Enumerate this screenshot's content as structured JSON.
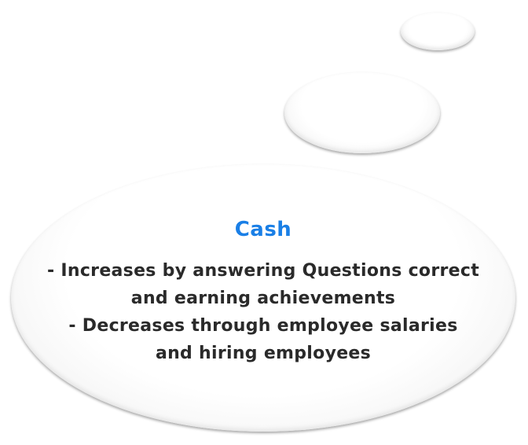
{
  "tooltip": {
    "title": "Cash",
    "lines": [
      "- Increases by answering Questions correct",
      "and earning achievements",
      "- Decreases through employee salaries",
      "and hiring employees"
    ]
  },
  "colors": {
    "title": "#1a7fe6",
    "text": "#2a2a2a",
    "bubble": "#ffffff"
  }
}
